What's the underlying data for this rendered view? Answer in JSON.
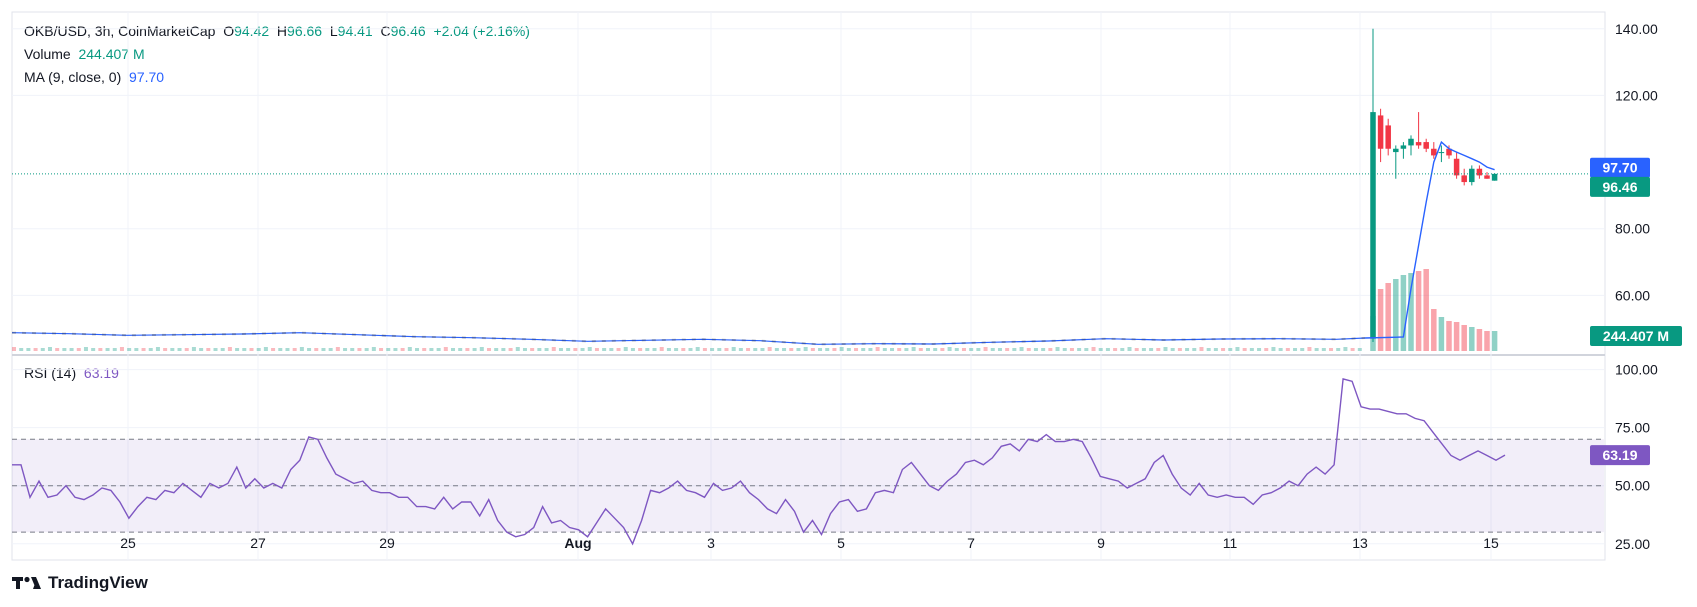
{
  "legend": {
    "symbol": "OKB/USD, 3h, CoinMarketCap",
    "o_label": "O",
    "o_value": "94.42",
    "h_label": "H",
    "h_value": "96.66",
    "l_label": "L",
    "l_value": "94.41",
    "c_label": "C",
    "c_value": "96.46",
    "change": "+2.04 (+2.16%)",
    "volume_label": "Volume",
    "volume_value": "244.407 M",
    "ma_label": "MA (9, close, 0)",
    "ma_value": "97.70",
    "rsi_label": "RSI (14)",
    "rsi_value": "63.19"
  },
  "brand": {
    "name": "TradingView",
    "logo_icon": "tradingview-logo-icon"
  },
  "colors": {
    "up": "#089981",
    "down": "#f23645",
    "ma": "#2962ff",
    "rsi": "#7e57c2",
    "grid": "#f0f3fa"
  },
  "chart_data": {
    "type": "candlestick",
    "x_ticks": [
      "25",
      "27",
      "29",
      "Aug",
      "3",
      "5",
      "7",
      "9",
      "11",
      "13",
      "15"
    ],
    "price_axis": {
      "ticks": [
        "140.00",
        "120.00",
        "80.00",
        "60.00"
      ],
      "range": [
        43,
        143
      ]
    },
    "last_price": "96.46",
    "ma_last": "97.70",
    "volume_last": "244.407 M",
    "rsi_axis": {
      "ticks": [
        "100.00",
        "75.00",
        "50.00",
        "25.00"
      ],
      "range": [
        18,
        102
      ],
      "bands": [
        30,
        50,
        70
      ]
    },
    "rsi_last": "63.19",
    "base_price_path": [
      [
        0,
        48.8
      ],
      [
        8,
        48.5
      ],
      [
        16,
        48.0
      ],
      [
        24,
        48.2
      ],
      [
        32,
        48.4
      ],
      [
        40,
        48.8
      ],
      [
        48,
        48.2
      ],
      [
        56,
        47.6
      ],
      [
        64,
        47.3
      ],
      [
        72,
        46.8
      ],
      [
        80,
        46.2
      ],
      [
        88,
        46.5
      ],
      [
        96,
        46.8
      ],
      [
        104,
        46.4
      ],
      [
        112,
        45.3
      ],
      [
        120,
        45.5
      ],
      [
        128,
        45.4
      ],
      [
        136,
        45.9
      ],
      [
        144,
        46.3
      ],
      [
        152,
        47.0
      ],
      [
        160,
        46.6
      ],
      [
        168,
        46.9
      ],
      [
        176,
        47.0
      ],
      [
        184,
        46.8
      ],
      [
        188,
        47.2
      ]
    ],
    "candles_recent": [
      {
        "o": 47,
        "h": 140,
        "l": 46,
        "c": 115
      },
      {
        "o": 114,
        "h": 116,
        "l": 100,
        "c": 104
      },
      {
        "o": 111,
        "h": 113,
        "l": 102,
        "c": 104
      },
      {
        "o": 103,
        "h": 105,
        "l": 95,
        "c": 104
      },
      {
        "o": 104,
        "h": 106,
        "l": 101,
        "c": 105
      },
      {
        "o": 105,
        "h": 108,
        "l": 102,
        "c": 107
      },
      {
        "o": 106,
        "h": 115,
        "l": 104,
        "c": 105
      },
      {
        "o": 106,
        "h": 107,
        "l": 103,
        "c": 104
      },
      {
        "o": 104,
        "h": 106,
        "l": 101,
        "c": 102
      },
      {
        "o": 103,
        "h": 105,
        "l": 100,
        "c": 103
      },
      {
        "o": 104,
        "h": 105,
        "l": 101,
        "c": 102
      },
      {
        "o": 101,
        "h": 103,
        "l": 95,
        "c": 96
      },
      {
        "o": 96,
        "h": 98,
        "l": 93,
        "c": 94
      },
      {
        "o": 94,
        "h": 99,
        "l": 93,
        "c": 98
      },
      {
        "o": 98,
        "h": 99,
        "l": 95,
        "c": 96
      },
      {
        "o": 96,
        "h": 97,
        "l": 95,
        "c": 95
      },
      {
        "o": 94.42,
        "h": 96.66,
        "l": 94.41,
        "c": 96.46
      }
    ],
    "ma_recent": [
      47.5,
      62,
      75,
      88,
      100,
      106,
      104,
      103,
      102,
      101,
      100,
      98.5,
      97.7
    ],
    "volume_recent": [
      0.35,
      0.62,
      0.68,
      0.72,
      0.76,
      0.78,
      0.8,
      0.82,
      0.42,
      0.34,
      0.3,
      0.29,
      0.26,
      0.24,
      0.22,
      0.2,
      0.2
    ],
    "rsi_path": [
      [
        0,
        59
      ],
      [
        2,
        59
      ],
      [
        4,
        45
      ],
      [
        6,
        52
      ],
      [
        8,
        45
      ],
      [
        10,
        46
      ],
      [
        12,
        50
      ],
      [
        14,
        45
      ],
      [
        16,
        44
      ],
      [
        18,
        46
      ],
      [
        20,
        49
      ],
      [
        22,
        48
      ],
      [
        24,
        43
      ],
      [
        26,
        36
      ],
      [
        28,
        41
      ],
      [
        30,
        45
      ],
      [
        32,
        44
      ],
      [
        34,
        48
      ],
      [
        36,
        47
      ],
      [
        38,
        51
      ],
      [
        40,
        48
      ],
      [
        42,
        45
      ],
      [
        44,
        51
      ],
      [
        46,
        49
      ],
      [
        48,
        51
      ],
      [
        50,
        58
      ],
      [
        52,
        49
      ],
      [
        54,
        53
      ],
      [
        56,
        49
      ],
      [
        58,
        51
      ],
      [
        60,
        49
      ],
      [
        62,
        57
      ],
      [
        64,
        61
      ],
      [
        66,
        71
      ],
      [
        68,
        70
      ],
      [
        70,
        62
      ],
      [
        72,
        55
      ],
      [
        74,
        53
      ],
      [
        76,
        51
      ],
      [
        78,
        52
      ],
      [
        80,
        48
      ],
      [
        82,
        47
      ],
      [
        84,
        47
      ],
      [
        86,
        45
      ],
      [
        88,
        45
      ],
      [
        90,
        41
      ],
      [
        92,
        41
      ],
      [
        94,
        40
      ],
      [
        96,
        45
      ],
      [
        98,
        40
      ],
      [
        100,
        43
      ],
      [
        102,
        43
      ],
      [
        104,
        37
      ],
      [
        106,
        44
      ],
      [
        108,
        35
      ],
      [
        110,
        30
      ],
      [
        112,
        28
      ],
      [
        114,
        29
      ],
      [
        116,
        32
      ],
      [
        118,
        41
      ],
      [
        120,
        34
      ],
      [
        122,
        35
      ],
      [
        124,
        32
      ],
      [
        126,
        31
      ],
      [
        128,
        28
      ],
      [
        130,
        34
      ],
      [
        132,
        40
      ],
      [
        134,
        36
      ],
      [
        136,
        32
      ],
      [
        138,
        25
      ],
      [
        140,
        35
      ],
      [
        142,
        48
      ],
      [
        144,
        47
      ],
      [
        146,
        49
      ],
      [
        148,
        52
      ],
      [
        150,
        48
      ],
      [
        152,
        47
      ],
      [
        154,
        45
      ],
      [
        156,
        51
      ],
      [
        158,
        48
      ],
      [
        160,
        49
      ],
      [
        162,
        52
      ],
      [
        164,
        47
      ],
      [
        166,
        44
      ],
      [
        168,
        40
      ],
      [
        170,
        38
      ],
      [
        172,
        44
      ],
      [
        174,
        39
      ],
      [
        176,
        30
      ],
      [
        178,
        35
      ],
      [
        180,
        29
      ],
      [
        182,
        38
      ],
      [
        184,
        43
      ],
      [
        186,
        44
      ],
      [
        188,
        39
      ],
      [
        190,
        40
      ],
      [
        192,
        47
      ],
      [
        194,
        48
      ],
      [
        196,
        47
      ],
      [
        198,
        57
      ],
      [
        200,
        60
      ],
      [
        202,
        55
      ],
      [
        204,
        50
      ],
      [
        206,
        48
      ],
      [
        208,
        52
      ],
      [
        210,
        55
      ],
      [
        212,
        60
      ],
      [
        214,
        61
      ],
      [
        216,
        59
      ],
      [
        218,
        62
      ],
      [
        220,
        67
      ],
      [
        222,
        68
      ],
      [
        224,
        65
      ],
      [
        226,
        70
      ],
      [
        228,
        69
      ],
      [
        230,
        72
      ],
      [
        232,
        69
      ],
      [
        234,
        69
      ],
      [
        236,
        70
      ],
      [
        238,
        69
      ],
      [
        240,
        62
      ],
      [
        242,
        54
      ],
      [
        244,
        53
      ],
      [
        246,
        52
      ],
      [
        248,
        49
      ],
      [
        250,
        51
      ],
      [
        252,
        53
      ],
      [
        254,
        60
      ],
      [
        256,
        63
      ],
      [
        258,
        55
      ],
      [
        260,
        49
      ],
      [
        262,
        46
      ],
      [
        264,
        51
      ],
      [
        266,
        46
      ],
      [
        268,
        45
      ],
      [
        270,
        46
      ],
      [
        272,
        45
      ],
      [
        274,
        45
      ],
      [
        276,
        42
      ],
      [
        278,
        46
      ],
      [
        280,
        47
      ],
      [
        282,
        49
      ],
      [
        284,
        52
      ],
      [
        286,
        50
      ],
      [
        288,
        55
      ],
      [
        290,
        58
      ],
      [
        292,
        55
      ],
      [
        294,
        59
      ],
      [
        296,
        96
      ],
      [
        298,
        95
      ],
      [
        300,
        84
      ],
      [
        302,
        83
      ],
      [
        304,
        83
      ],
      [
        306,
        82
      ],
      [
        308,
        81
      ],
      [
        310,
        81
      ],
      [
        312,
        79
      ],
      [
        314,
        78
      ],
      [
        316,
        73
      ],
      [
        318,
        68
      ],
      [
        320,
        63
      ],
      [
        322,
        61
      ],
      [
        324,
        63
      ],
      [
        326,
        65
      ],
      [
        328,
        63
      ],
      [
        330,
        61
      ],
      [
        332,
        63.19
      ]
    ]
  }
}
